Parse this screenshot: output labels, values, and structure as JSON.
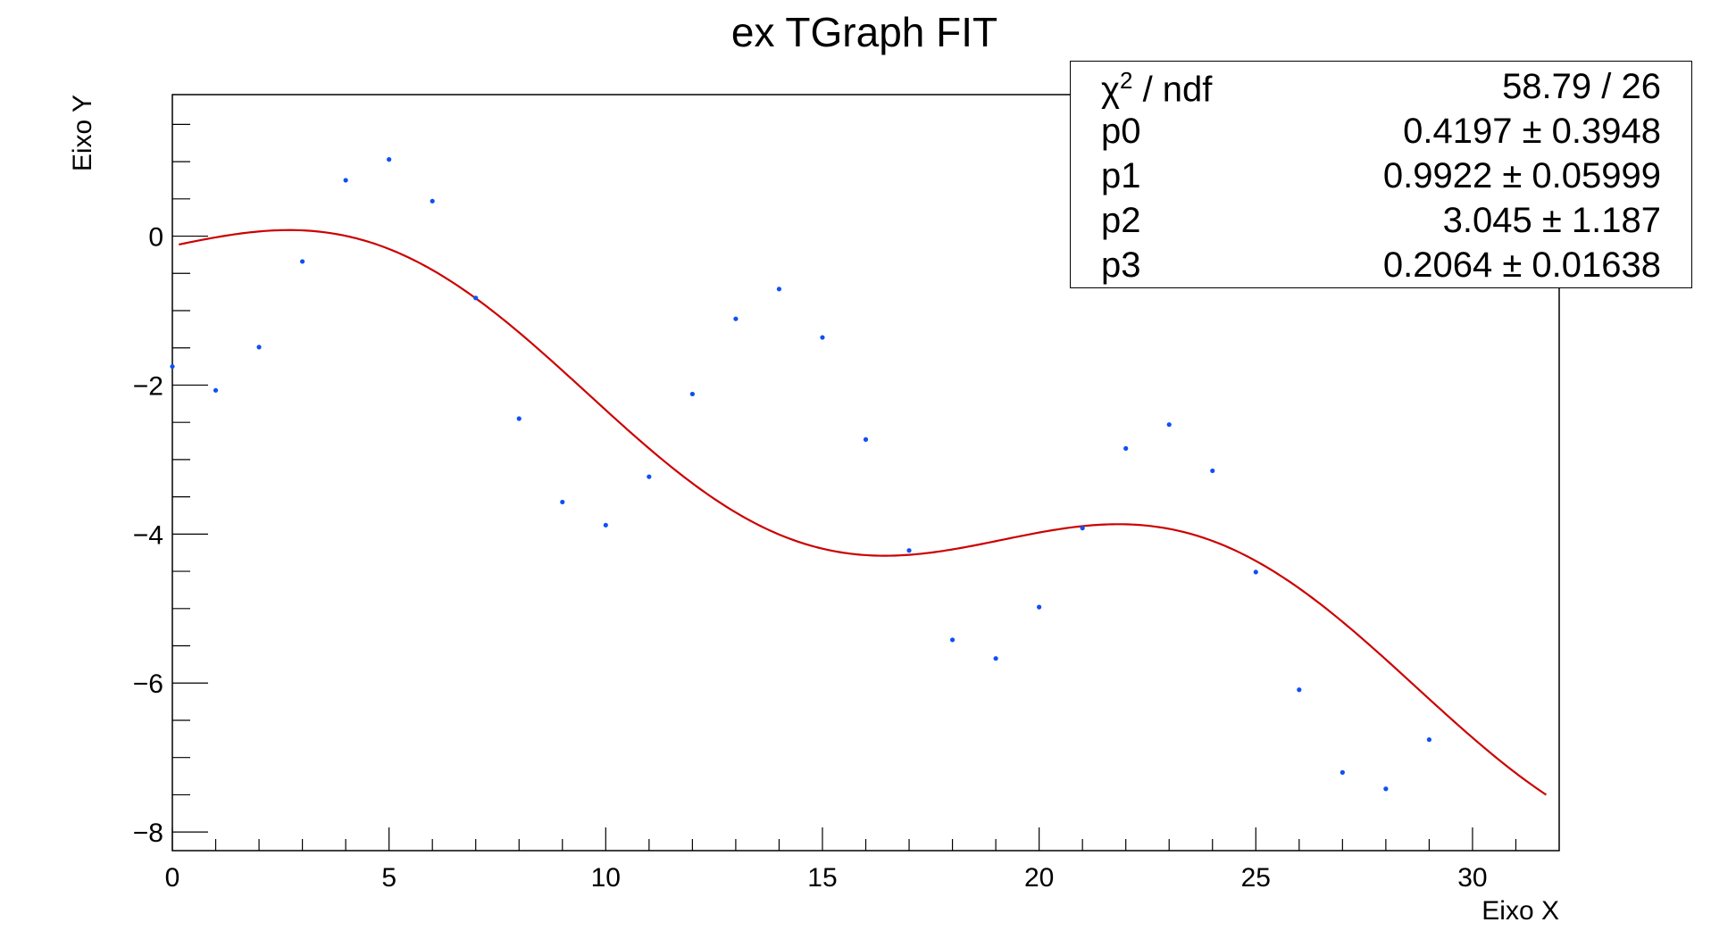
{
  "chart_data": {
    "type": "scatter",
    "title": "ex TGraph FIT",
    "xlabel": "Eixo X",
    "ylabel": "Eixo Y",
    "xlim": [
      0,
      32
    ],
    "ylim": [
      -8.25,
      1.9
    ],
    "xticks": [
      0,
      5,
      10,
      15,
      20,
      25,
      30
    ],
    "yticks": [
      -8,
      -6,
      -4,
      -2,
      0
    ],
    "xtick_labels": [
      "0",
      "5",
      "10",
      "15",
      "20",
      "25",
      "30"
    ],
    "ytick_labels": [
      "−8",
      "−6",
      "−4",
      "−2",
      "0"
    ],
    "grid": false,
    "points": {
      "x": [
        0,
        1,
        2,
        3,
        4,
        5,
        6,
        7,
        8,
        9,
        10,
        11,
        12,
        13,
        14,
        15,
        16,
        17,
        18,
        19,
        20,
        21,
        22,
        23,
        24,
        25,
        26,
        27,
        28,
        29
      ],
      "y": [
        -1.75,
        -2.07,
        -1.49,
        -0.34,
        0.75,
        1.03,
        0.47,
        -0.83,
        -2.45,
        -3.57,
        -3.88,
        -3.23,
        -2.12,
        -1.11,
        -0.71,
        -1.36,
        -2.73,
        -4.22,
        -5.42,
        -5.67,
        -4.98,
        -3.92,
        -2.85,
        -2.53,
        -3.15,
        -4.51,
        -6.09,
        -7.2,
        -7.42,
        -6.76
      ]
    },
    "fit": {
      "x_start": 0.15,
      "x_end": 31.7,
      "params": [
        0.4197,
        0.9922,
        3.045,
        0.2064
      ]
    },
    "colors": {
      "points": "#0f4ff5",
      "fit": "#cc0000",
      "axes": "#000000"
    },
    "stats": {
      "rows": [
        {
          "label_main": "χ",
          "label_sup": "2",
          "label_rest": " / ndf",
          "value": "58.79 / 26"
        },
        {
          "label_main": "p0",
          "label_sup": "",
          "label_rest": "",
          "value": "0.4197 ± 0.3948"
        },
        {
          "label_main": "p1",
          "label_sup": "",
          "label_rest": "",
          "value": "0.9922 ± 0.05999"
        },
        {
          "label_main": "p2",
          "label_sup": "",
          "label_rest": "",
          "value": "3.045 ± 1.187"
        },
        {
          "label_main": "p3",
          "label_sup": "",
          "label_rest": "",
          "value": "0.2064 ± 0.01638"
        }
      ]
    }
  }
}
